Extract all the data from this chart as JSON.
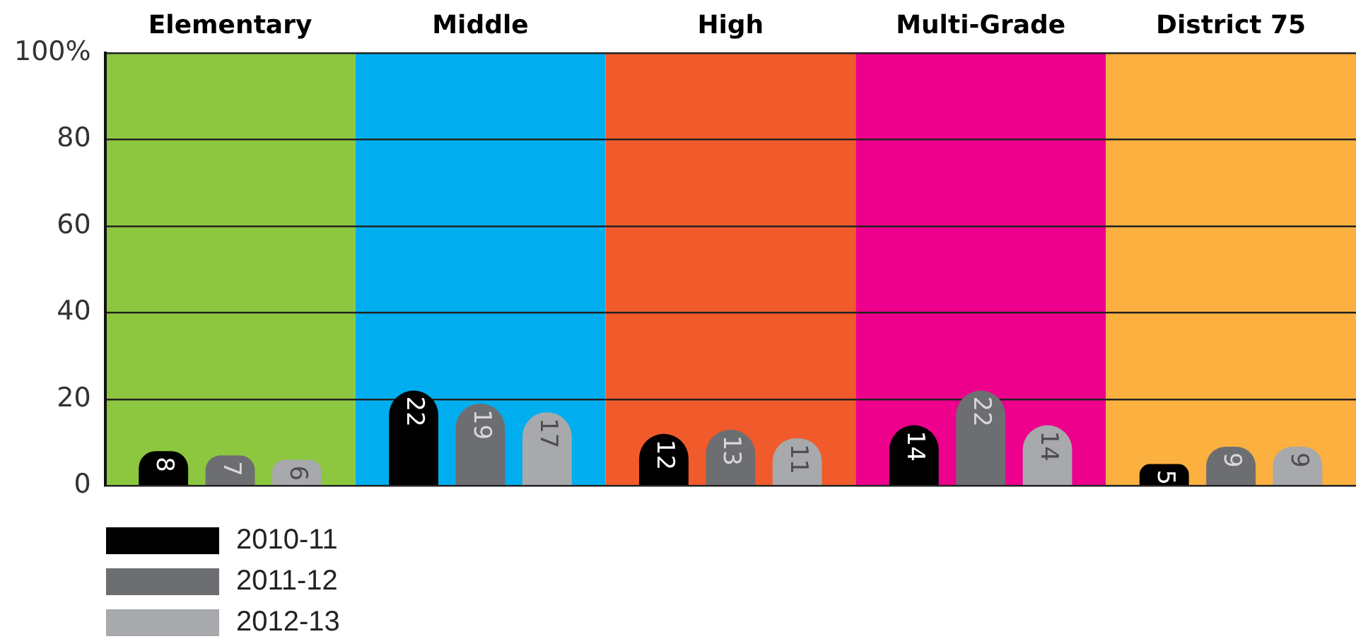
{
  "chart_data": {
    "type": "bar",
    "categories": [
      "Elementary",
      "Middle",
      "High",
      "Multi-Grade",
      "District 75"
    ],
    "series": [
      {
        "name": "2010-11",
        "color": "#000000",
        "values": [
          8,
          22,
          12,
          14,
          5
        ]
      },
      {
        "name": "2011-12",
        "color": "#6d6e71",
        "values": [
          7,
          19,
          13,
          22,
          9
        ]
      },
      {
        "name": "2012-13",
        "color": "#a7a9ac",
        "values": [
          6,
          17,
          11,
          14,
          9
        ]
      }
    ],
    "ylim": [
      0,
      100
    ],
    "yticks": [
      0,
      20,
      40,
      60,
      80,
      {
        "value": 100,
        "label": "100%"
      }
    ],
    "grid": "y",
    "legend": "bottom left",
    "data_labels": true,
    "bands": [
      {
        "axis": "x",
        "from": "Elementary",
        "to": "Elementary",
        "color": "#8dc63f"
      },
      {
        "axis": "x",
        "from": "Middle",
        "to": "Middle",
        "color": "#00aeef"
      },
      {
        "axis": "x",
        "from": "High",
        "to": "High",
        "color": "#f15a2b"
      },
      {
        "axis": "x",
        "from": "Multi-Grade",
        "to": "Multi-Grade",
        "color": "#ec008c"
      },
      {
        "axis": "x",
        "from": "District 75",
        "to": "District 75",
        "color": "#fbb040"
      }
    ]
  }
}
